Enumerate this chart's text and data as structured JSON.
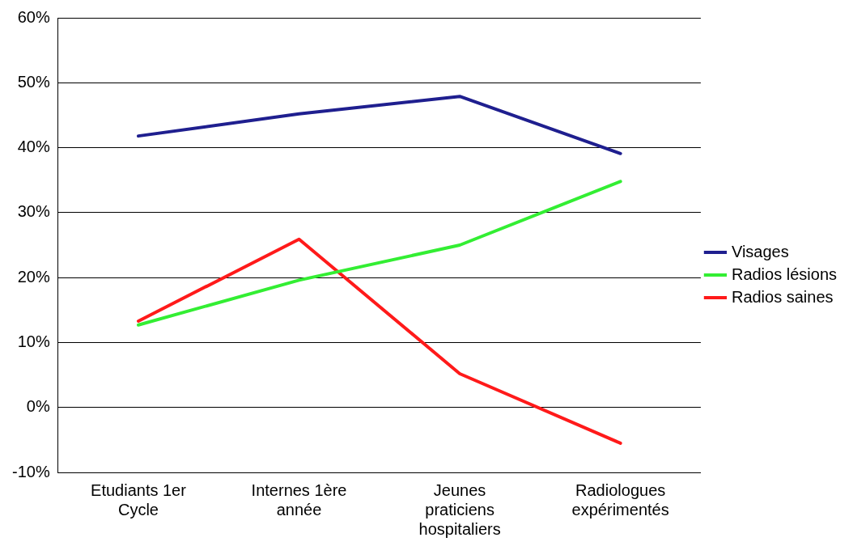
{
  "chart_data": {
    "type": "line",
    "categories": [
      "Etudiants 1er Cycle",
      "Internes 1ère année",
      "Jeunes praticiens hospitaliers",
      "Radiologues expérimentés"
    ],
    "series": [
      {
        "name": "Visages",
        "color": "#1f1f8f",
        "values": [
          41.8,
          45.2,
          47.9,
          39.1
        ]
      },
      {
        "name": "Radios lésions",
        "color": "#33ee33",
        "values": [
          12.7,
          19.6,
          25,
          34.8
        ]
      },
      {
        "name": "Radios saines",
        "color": "#ff1a1a",
        "values": [
          13.3,
          25.9,
          5.2,
          -5.5
        ]
      }
    ],
    "ylim": [
      -10,
      60
    ],
    "yticks": [
      {
        "value": -10,
        "label": "-10%"
      },
      {
        "value": 0,
        "label": "0%"
      },
      {
        "value": 10,
        "label": "10%"
      },
      {
        "value": 20,
        "label": "20%"
      },
      {
        "value": 30,
        "label": "30%"
      },
      {
        "value": 40,
        "label": "40%"
      },
      {
        "value": 50,
        "label": "50%"
      },
      {
        "value": 60,
        "label": "60%"
      }
    ],
    "grid": "y",
    "legend": "right",
    "marker": "none",
    "line_style": "solid"
  }
}
